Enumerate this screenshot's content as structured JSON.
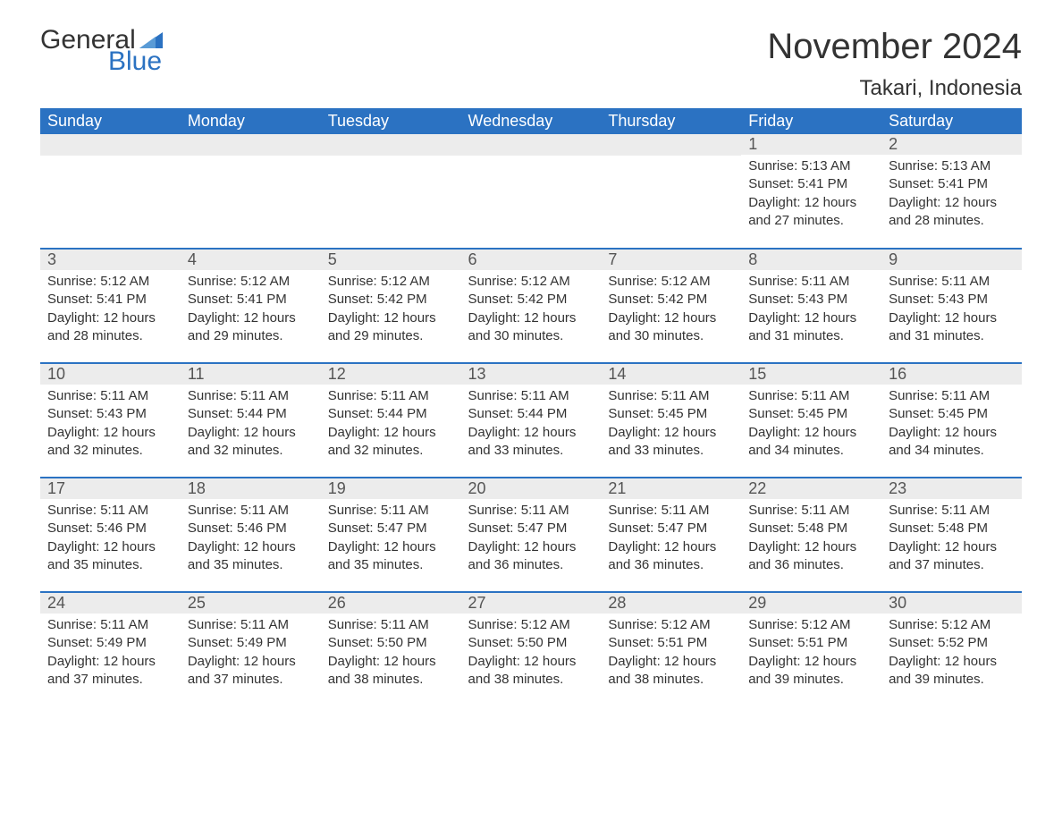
{
  "brand": {
    "word1": "General",
    "word2": "Blue",
    "flag_color": "#2b72c2"
  },
  "title": "November 2024",
  "location": "Takari, Indonesia",
  "colors": {
    "header_bg": "#2b72c2",
    "header_fg": "#ffffff",
    "daynum_bg": "#ececec",
    "text": "#333333",
    "row_border": "#2b72c2"
  },
  "fonts": {
    "title_pt": 40,
    "location_pt": 24,
    "dayhead_pt": 18,
    "daynum_pt": 18,
    "body_pt": 15
  },
  "day_headers": [
    "Sunday",
    "Monday",
    "Tuesday",
    "Wednesday",
    "Thursday",
    "Friday",
    "Saturday"
  ],
  "weeks": [
    [
      {
        "empty": true
      },
      {
        "empty": true
      },
      {
        "empty": true
      },
      {
        "empty": true
      },
      {
        "empty": true
      },
      {
        "day": 1,
        "sunrise": "5:13 AM",
        "sunset": "5:41 PM",
        "daylight": "12 hours and 27 minutes."
      },
      {
        "day": 2,
        "sunrise": "5:13 AM",
        "sunset": "5:41 PM",
        "daylight": "12 hours and 28 minutes."
      }
    ],
    [
      {
        "day": 3,
        "sunrise": "5:12 AM",
        "sunset": "5:41 PM",
        "daylight": "12 hours and 28 minutes."
      },
      {
        "day": 4,
        "sunrise": "5:12 AM",
        "sunset": "5:41 PM",
        "daylight": "12 hours and 29 minutes."
      },
      {
        "day": 5,
        "sunrise": "5:12 AM",
        "sunset": "5:42 PM",
        "daylight": "12 hours and 29 minutes."
      },
      {
        "day": 6,
        "sunrise": "5:12 AM",
        "sunset": "5:42 PM",
        "daylight": "12 hours and 30 minutes."
      },
      {
        "day": 7,
        "sunrise": "5:12 AM",
        "sunset": "5:42 PM",
        "daylight": "12 hours and 30 minutes."
      },
      {
        "day": 8,
        "sunrise": "5:11 AM",
        "sunset": "5:43 PM",
        "daylight": "12 hours and 31 minutes."
      },
      {
        "day": 9,
        "sunrise": "5:11 AM",
        "sunset": "5:43 PM",
        "daylight": "12 hours and 31 minutes."
      }
    ],
    [
      {
        "day": 10,
        "sunrise": "5:11 AM",
        "sunset": "5:43 PM",
        "daylight": "12 hours and 32 minutes."
      },
      {
        "day": 11,
        "sunrise": "5:11 AM",
        "sunset": "5:44 PM",
        "daylight": "12 hours and 32 minutes."
      },
      {
        "day": 12,
        "sunrise": "5:11 AM",
        "sunset": "5:44 PM",
        "daylight": "12 hours and 32 minutes."
      },
      {
        "day": 13,
        "sunrise": "5:11 AM",
        "sunset": "5:44 PM",
        "daylight": "12 hours and 33 minutes."
      },
      {
        "day": 14,
        "sunrise": "5:11 AM",
        "sunset": "5:45 PM",
        "daylight": "12 hours and 33 minutes."
      },
      {
        "day": 15,
        "sunrise": "5:11 AM",
        "sunset": "5:45 PM",
        "daylight": "12 hours and 34 minutes."
      },
      {
        "day": 16,
        "sunrise": "5:11 AM",
        "sunset": "5:45 PM",
        "daylight": "12 hours and 34 minutes."
      }
    ],
    [
      {
        "day": 17,
        "sunrise": "5:11 AM",
        "sunset": "5:46 PM",
        "daylight": "12 hours and 35 minutes."
      },
      {
        "day": 18,
        "sunrise": "5:11 AM",
        "sunset": "5:46 PM",
        "daylight": "12 hours and 35 minutes."
      },
      {
        "day": 19,
        "sunrise": "5:11 AM",
        "sunset": "5:47 PM",
        "daylight": "12 hours and 35 minutes."
      },
      {
        "day": 20,
        "sunrise": "5:11 AM",
        "sunset": "5:47 PM",
        "daylight": "12 hours and 36 minutes."
      },
      {
        "day": 21,
        "sunrise": "5:11 AM",
        "sunset": "5:47 PM",
        "daylight": "12 hours and 36 minutes."
      },
      {
        "day": 22,
        "sunrise": "5:11 AM",
        "sunset": "5:48 PM",
        "daylight": "12 hours and 36 minutes."
      },
      {
        "day": 23,
        "sunrise": "5:11 AM",
        "sunset": "5:48 PM",
        "daylight": "12 hours and 37 minutes."
      }
    ],
    [
      {
        "day": 24,
        "sunrise": "5:11 AM",
        "sunset": "5:49 PM",
        "daylight": "12 hours and 37 minutes."
      },
      {
        "day": 25,
        "sunrise": "5:11 AM",
        "sunset": "5:49 PM",
        "daylight": "12 hours and 37 minutes."
      },
      {
        "day": 26,
        "sunrise": "5:11 AM",
        "sunset": "5:50 PM",
        "daylight": "12 hours and 38 minutes."
      },
      {
        "day": 27,
        "sunrise": "5:12 AM",
        "sunset": "5:50 PM",
        "daylight": "12 hours and 38 minutes."
      },
      {
        "day": 28,
        "sunrise": "5:12 AM",
        "sunset": "5:51 PM",
        "daylight": "12 hours and 38 minutes."
      },
      {
        "day": 29,
        "sunrise": "5:12 AM",
        "sunset": "5:51 PM",
        "daylight": "12 hours and 39 minutes."
      },
      {
        "day": 30,
        "sunrise": "5:12 AM",
        "sunset": "5:52 PM",
        "daylight": "12 hours and 39 minutes."
      }
    ]
  ],
  "labels": {
    "sunrise": "Sunrise:",
    "sunset": "Sunset:",
    "daylight": "Daylight:"
  }
}
